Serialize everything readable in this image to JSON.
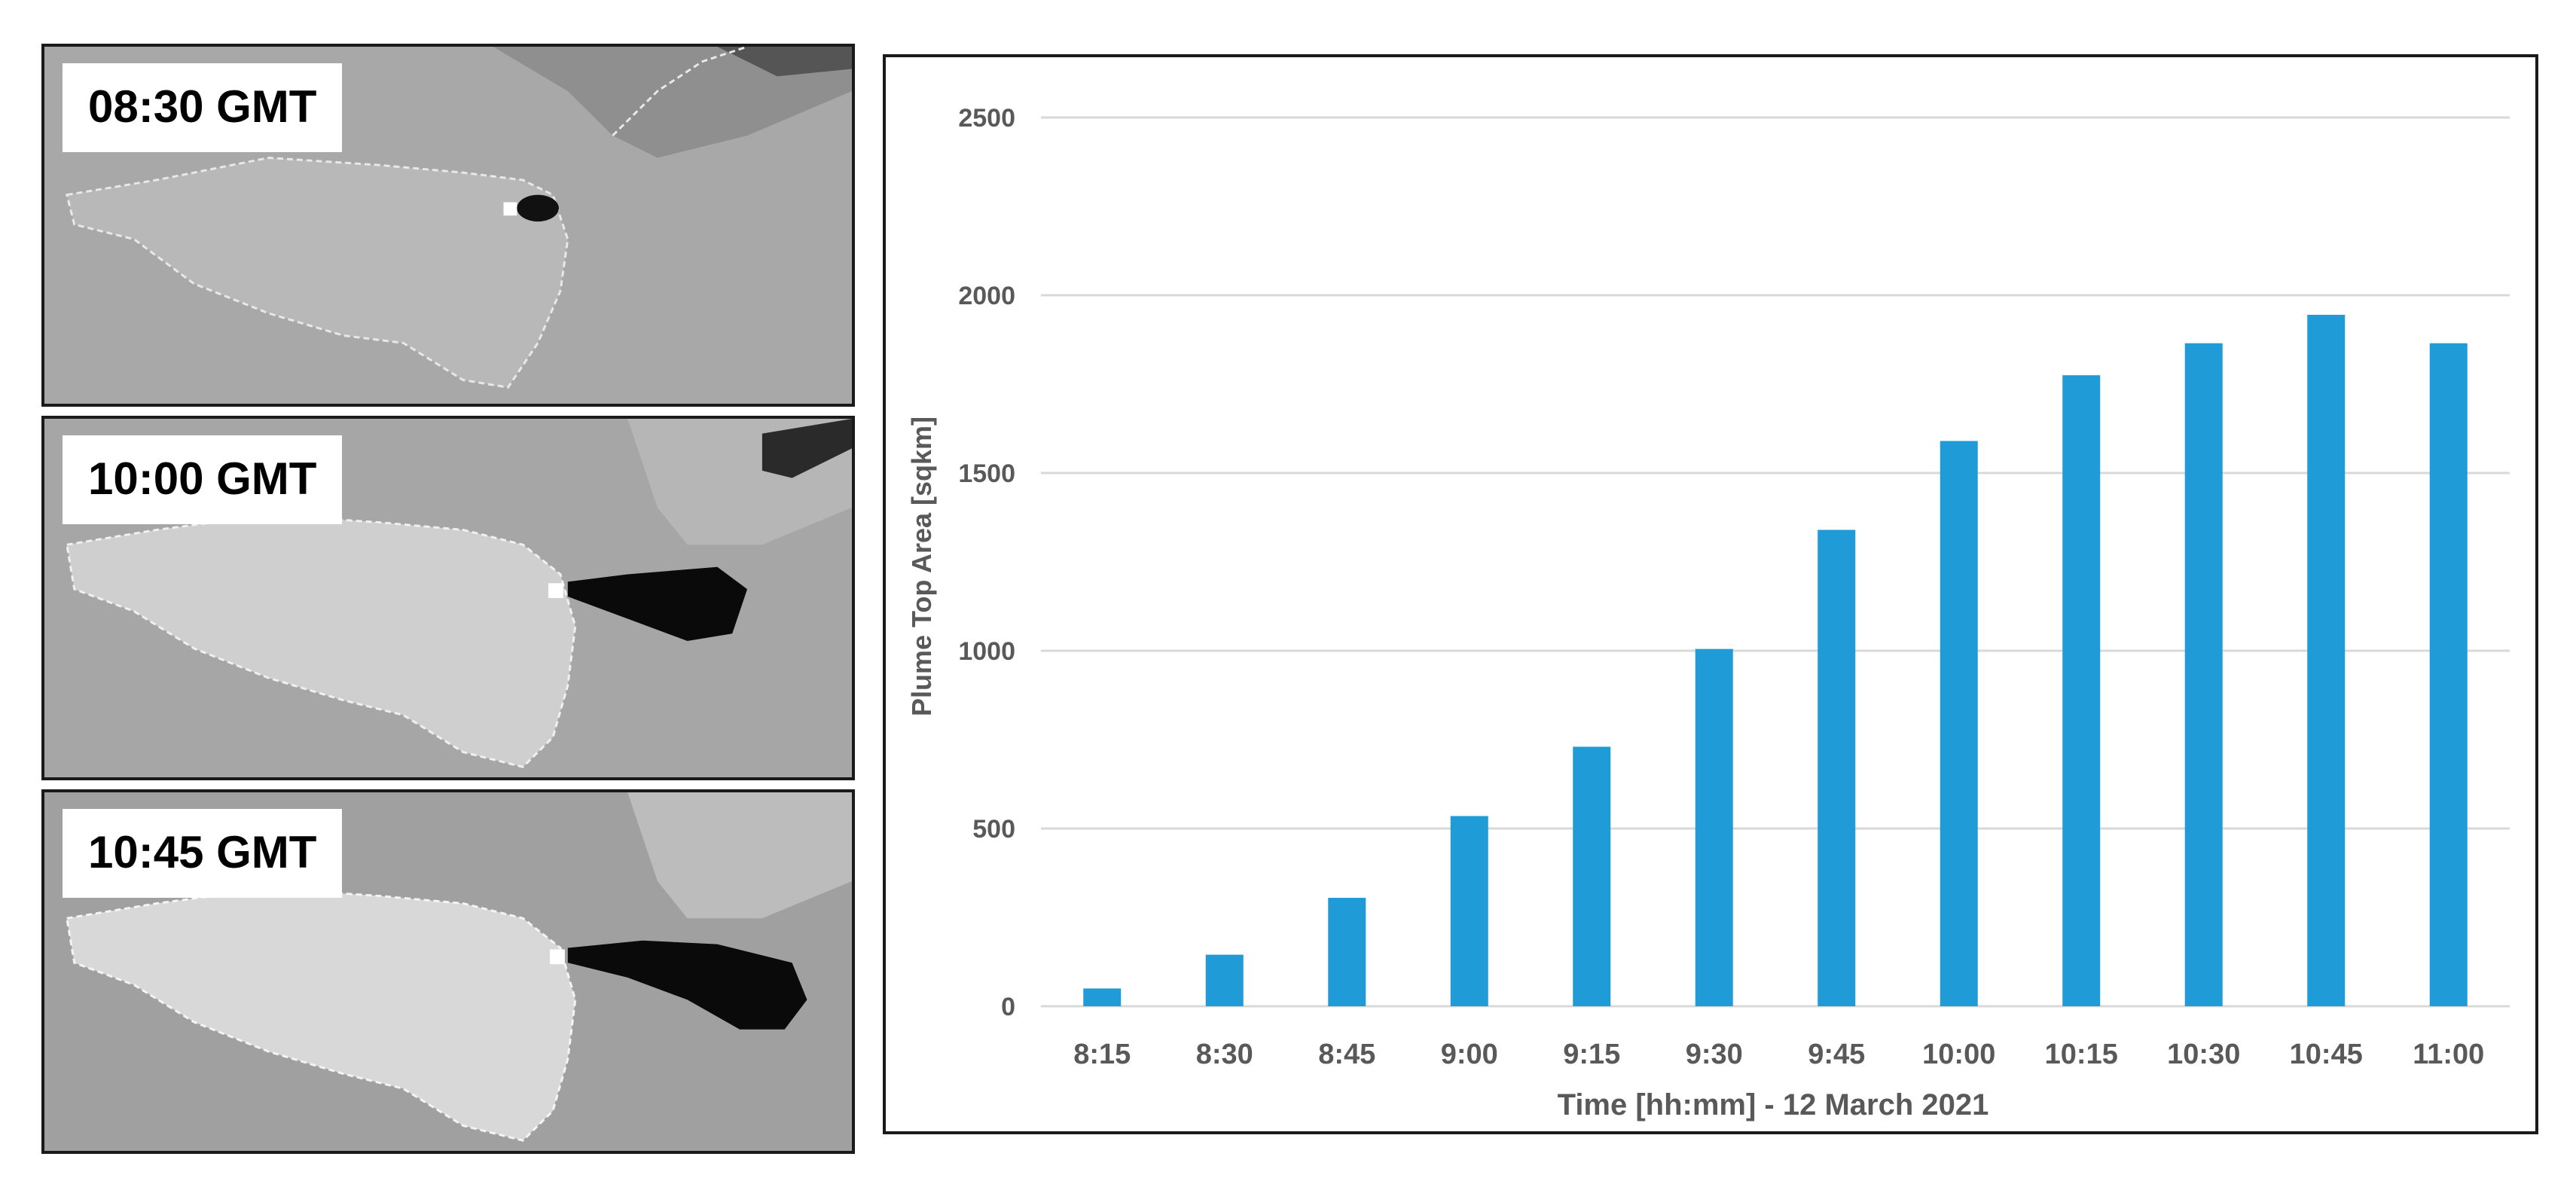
{
  "panels": [
    {
      "label": "08:30 GMT"
    },
    {
      "label": "10:00 GMT"
    },
    {
      "label": "10:45 GMT"
    }
  ],
  "colors": {
    "bar": "#1f9bd7",
    "grid": "#d9d9d9",
    "axis_text": "#595959"
  },
  "chart_data": {
    "type": "bar",
    "categories": [
      "8:15",
      "8:30",
      "8:45",
      "9:00",
      "9:15",
      "9:30",
      "9:45",
      "10:00",
      "10:15",
      "10:30",
      "10:45",
      "11:00"
    ],
    "values": [
      50,
      145,
      305,
      535,
      730,
      1005,
      1340,
      1590,
      1775,
      1865,
      1945,
      1865
    ],
    "xlabel": "Time [hh:mm] - 12 March 2021",
    "ylabel": "Plume Top Area [sqkm]",
    "ylim": [
      0,
      2500
    ],
    "yticks": [
      0,
      500,
      1000,
      1500,
      2000,
      2500
    ],
    "grid": true
  }
}
